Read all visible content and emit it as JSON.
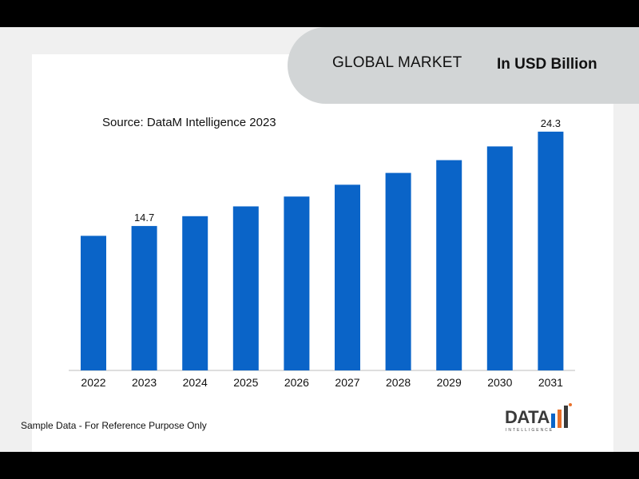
{
  "banner": {
    "title": "GLOBAL MARKET",
    "unit": "In USD Billion"
  },
  "source": "Source: DataM Intelligence 2023",
  "footnote": "Sample Data - For Reference Purpose Only",
  "logo": {
    "word": "DATA",
    "sub": "INTELLIGENCE"
  },
  "colors": {
    "bar": "#0a64c8",
    "banner": "#d2d5d6",
    "background": "#f0f0f0"
  },
  "chart_data": {
    "type": "bar",
    "title": "",
    "xlabel": "",
    "ylabel": "",
    "categories": [
      "2022",
      "2023",
      "2024",
      "2025",
      "2026",
      "2027",
      "2028",
      "2029",
      "2030",
      "2031"
    ],
    "values": [
      13.7,
      14.7,
      15.7,
      16.7,
      17.7,
      18.9,
      20.1,
      21.4,
      22.8,
      24.3
    ],
    "data_labels": [
      {
        "category": "2023",
        "text": "14.7"
      },
      {
        "category": "2031",
        "text": "24.3"
      }
    ],
    "ylim": [
      0,
      26
    ],
    "grid": false,
    "legend": "none"
  }
}
